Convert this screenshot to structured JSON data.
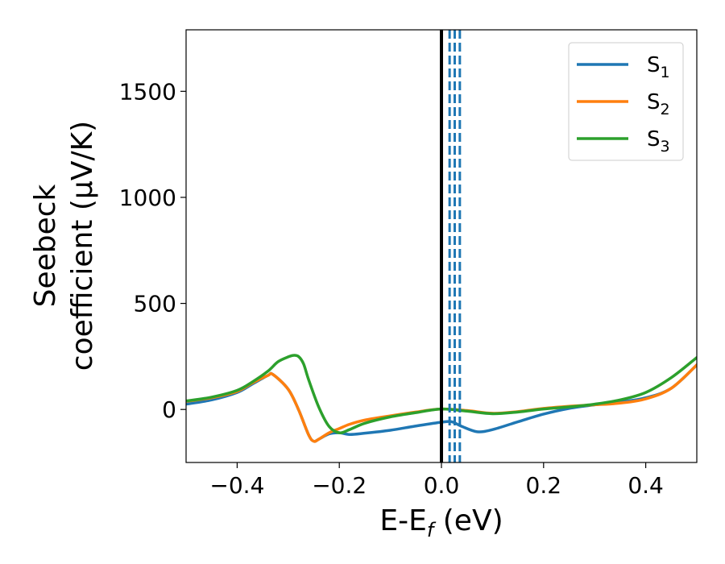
{
  "chart_data": {
    "type": "line",
    "xlabel": "E-Ef (eV)",
    "ylabel_line1": "Seebeck",
    "ylabel_line2": "coefficient (μV/K)",
    "xlim": [
      -0.5,
      0.5
    ],
    "ylim": [
      -250,
      1790
    ],
    "x_ticks": [
      -0.4,
      -0.2,
      0.0,
      0.2,
      0.4
    ],
    "x_tick_labels": [
      "−0.4",
      "−0.2",
      "0.0",
      "0.2",
      "0.4"
    ],
    "y_ticks": [
      0,
      500,
      1000,
      1500
    ],
    "y_tick_labels": [
      "0",
      "500",
      "1000",
      "1500"
    ],
    "grid": false,
    "legend_position": "top-right",
    "series": [
      {
        "name": "S1",
        "color": "#1f77b4",
        "x": [
          -0.5,
          -0.45,
          -0.4,
          -0.37,
          -0.34,
          -0.33,
          -0.3,
          -0.28,
          -0.26,
          -0.25,
          -0.24,
          -0.22,
          -0.2,
          -0.18,
          -0.15,
          -0.1,
          -0.05,
          0.0,
          0.02,
          0.04,
          0.07,
          0.1,
          0.15,
          0.2,
          0.25,
          0.3,
          0.35,
          0.4,
          0.45,
          0.5
        ],
        "y": [
          25,
          45,
          80,
          120,
          160,
          165,
          95,
          0,
          -120,
          -150,
          -140,
          -115,
          -110,
          -118,
          -112,
          -98,
          -78,
          -60,
          -58,
          -80,
          -105,
          -95,
          -58,
          -22,
          5,
          22,
          35,
          55,
          100,
          210
        ]
      },
      {
        "name": "S2",
        "color": "#ff7f0e",
        "x": [
          -0.5,
          -0.45,
          -0.4,
          -0.37,
          -0.34,
          -0.33,
          -0.3,
          -0.28,
          -0.26,
          -0.25,
          -0.24,
          -0.22,
          -0.2,
          -0.18,
          -0.15,
          -0.1,
          -0.05,
          0.0,
          0.05,
          0.1,
          0.15,
          0.2,
          0.25,
          0.3,
          0.35,
          0.4,
          0.45,
          0.5
        ],
        "y": [
          38,
          55,
          85,
          125,
          160,
          165,
          95,
          0,
          -120,
          -150,
          -140,
          -110,
          -90,
          -70,
          -50,
          -30,
          -12,
          2,
          -5,
          -18,
          -10,
          5,
          15,
          22,
          30,
          50,
          100,
          210
        ]
      },
      {
        "name": "S3",
        "color": "#2ca02c",
        "x": [
          -0.5,
          -0.45,
          -0.4,
          -0.37,
          -0.34,
          -0.32,
          -0.3,
          -0.29,
          -0.28,
          -0.27,
          -0.26,
          -0.24,
          -0.22,
          -0.2,
          -0.18,
          -0.15,
          -0.1,
          -0.05,
          0.0,
          0.05,
          0.1,
          0.15,
          0.2,
          0.25,
          0.3,
          0.35,
          0.4,
          0.45,
          0.5
        ],
        "y": [
          40,
          58,
          90,
          130,
          180,
          225,
          248,
          255,
          250,
          215,
          140,
          10,
          -80,
          -110,
          -95,
          -65,
          -35,
          -15,
          2,
          -8,
          -20,
          -12,
          2,
          12,
          25,
          45,
          80,
          150,
          245
        ]
      }
    ],
    "vertical_lines": [
      {
        "x": 0.0,
        "color": "#000000",
        "style": "solid"
      },
      {
        "x": 0.016,
        "color": "#1f77b4",
        "style": "dashed"
      },
      {
        "x": 0.026,
        "color": "#1f77b4",
        "style": "dashed"
      },
      {
        "x": 0.036,
        "color": "#1f77b4",
        "style": "dashed"
      }
    ],
    "legend": [
      {
        "base": "S",
        "sub": "1",
        "color": "#1f77b4"
      },
      {
        "base": "S",
        "sub": "2",
        "color": "#ff7f0e"
      },
      {
        "base": "S",
        "sub": "3",
        "color": "#2ca02c"
      }
    ]
  }
}
